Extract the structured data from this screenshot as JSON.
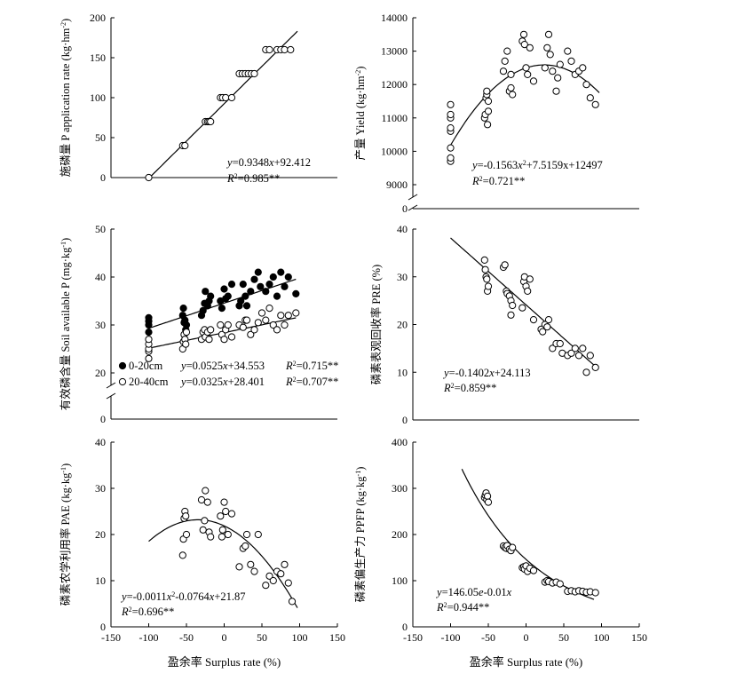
{
  "chart_data": [
    {
      "id": "p1",
      "type": "scatter",
      "ylabel_parts": [
        {
          "t": "施磷量  P application rate (kg·hm"
        },
        {
          "t": "-2",
          "sup": true
        },
        {
          "t": ")"
        }
      ],
      "xlabel": "",
      "ylim": [
        0,
        200
      ],
      "yticks": [
        0,
        50,
        100,
        150,
        200
      ],
      "xlim": [
        -150,
        150
      ],
      "xticks": [],
      "xtick_labels": false,
      "axis_break": false,
      "series": [
        {
          "style": "open",
          "x": [
            -100,
            -55,
            -52,
            -25,
            -22,
            -20,
            -18,
            -5,
            -2,
            2,
            10,
            20,
            24,
            28,
            32,
            36,
            40,
            55,
            60,
            70,
            75,
            80,
            88
          ],
          "y": [
            0,
            40,
            40,
            70,
            70,
            70,
            70,
            100,
            100,
            100,
            100,
            130,
            130,
            130,
            130,
            130,
            130,
            160,
            160,
            160,
            160,
            160,
            160
          ]
        }
      ],
      "fits": [
        {
          "kind": "poly",
          "coef": [
            92.412,
            0.9348
          ],
          "x_range": [
            -100,
            97
          ]
        }
      ],
      "equations": [
        {
          "lines": [
            [
              {
                "t": "y",
                "it": true
              },
              {
                "t": "=0.9348"
              },
              {
                "t": "x",
                "it": true
              },
              {
                "t": "+92.412"
              }
            ],
            [
              {
                "t": "R",
                "it": true
              },
              {
                "t": "2",
                "sup": true
              },
              {
                "t": "=0.985**"
              }
            ]
          ]
        }
      ]
    },
    {
      "id": "p2",
      "type": "scatter",
      "ylabel_parts": [
        {
          "t": "产量  Yield (kg·hm"
        },
        {
          "t": "-2",
          "sup": true
        },
        {
          "t": ")"
        }
      ],
      "xlabel": "",
      "ylim": [
        9000,
        14000
      ],
      "yticks": [
        9000,
        10000,
        11000,
        12000,
        13000,
        14000
      ],
      "xlim": [
        -150,
        150
      ],
      "xticks": [],
      "xtick_labels": false,
      "axis_break": true,
      "zero_label": "0",
      "series": [
        {
          "style": "open",
          "x": [
            -100,
            -100,
            -100,
            -100,
            -100,
            -100,
            -100,
            -100,
            -55,
            -54,
            -53,
            -52,
            -52,
            -51,
            -50,
            -50,
            -30,
            -28,
            -25,
            -22,
            -20,
            -20,
            -18,
            -5,
            -3,
            -2,
            0,
            2,
            5,
            10,
            25,
            28,
            30,
            32,
            35,
            40,
            42,
            45,
            55,
            60,
            65,
            70,
            75,
            80,
            85,
            92
          ],
          "y": [
            9700,
            9800,
            10100,
            10600,
            10700,
            11000,
            11400,
            11100,
            11000,
            11100,
            11600,
            11700,
            11800,
            10800,
            11200,
            11500,
            12400,
            12700,
            13000,
            11800,
            12300,
            11900,
            11700,
            13300,
            13500,
            13200,
            12500,
            12300,
            13100,
            12100,
            12500,
            13100,
            13500,
            12900,
            12400,
            11800,
            12200,
            12600,
            13000,
            12700,
            12300,
            12400,
            12500,
            12000,
            11600,
            11400
          ]
        }
      ],
      "fits": [
        {
          "kind": "poly",
          "coef": [
            12497,
            7.5159,
            -0.1563
          ],
          "x_range": [
            -100,
            97
          ]
        }
      ],
      "equations": [
        {
          "lines": [
            [
              {
                "t": "y",
                "it": true
              },
              {
                "t": "=-0.1563"
              },
              {
                "t": "x",
                "it": true
              },
              {
                "t": "2",
                "sup": true
              },
              {
                "t": "+7.5159x+12497"
              }
            ],
            [
              {
                "t": "R",
                "it": true
              },
              {
                "t": "2",
                "sup": true
              },
              {
                "t": "=0.721**"
              }
            ]
          ]
        }
      ]
    },
    {
      "id": "p3",
      "type": "scatter",
      "ylabel_parts": [
        {
          "t": "有效磷含量  Soil available P (mg·kg"
        },
        {
          "t": "-1",
          "sup": true
        },
        {
          "t": ")"
        }
      ],
      "xlabel": "",
      "ylim": [
        20,
        50
      ],
      "yticks": [
        20,
        30,
        40,
        50
      ],
      "xlim": [
        -150,
        150
      ],
      "xticks": [],
      "xtick_labels": false,
      "axis_break": true,
      "zero_label": "0",
      "series": [
        {
          "style": "filled",
          "name": "0-20cm",
          "x": [
            -100,
            -100,
            -100,
            -100,
            -55,
            -54,
            -53,
            -52,
            -51,
            -50,
            -30,
            -28,
            -26,
            -25,
            -22,
            -20,
            -18,
            -5,
            -3,
            0,
            2,
            5,
            10,
            20,
            22,
            25,
            28,
            30,
            35,
            40,
            45,
            48,
            55,
            60,
            65,
            70,
            75,
            80,
            85,
            95
          ],
          "y": [
            28.5,
            30,
            30.8,
            31.5,
            32,
            33.5,
            30.5,
            31,
            29,
            30,
            32,
            33,
            34.5,
            37,
            34,
            35,
            36,
            35,
            33.5,
            37.5,
            35.5,
            36,
            38.5,
            34,
            35,
            38.5,
            36,
            34,
            37,
            39.5,
            41,
            38,
            37,
            38.5,
            40,
            36,
            41,
            38,
            40,
            36.5
          ]
        },
        {
          "style": "open",
          "name": "20-40cm",
          "x": [
            -100,
            -100,
            -100,
            -100,
            -100,
            -55,
            -54,
            -53,
            -52,
            -51,
            -50,
            -30,
            -28,
            -26,
            -25,
            -22,
            -20,
            -18,
            -5,
            -3,
            0,
            2,
            5,
            10,
            20,
            25,
            28,
            30,
            35,
            40,
            45,
            50,
            55,
            60,
            65,
            70,
            75,
            80,
            85,
            95
          ],
          "y": [
            23,
            24.5,
            25,
            26,
            27,
            25,
            26.5,
            28,
            27,
            26,
            28.5,
            27,
            28.5,
            29,
            27.5,
            28.5,
            27,
            29,
            30,
            28,
            27,
            29,
            30,
            27.5,
            30,
            29.5,
            31,
            31,
            28,
            29,
            30.5,
            32.5,
            31,
            33.5,
            30,
            29,
            32,
            30,
            32,
            32.5
          ]
        }
      ],
      "fits": [
        {
          "kind": "poly",
          "coef": [
            34.553,
            0.0525
          ],
          "x_range": [
            -100,
            95
          ]
        },
        {
          "kind": "poly",
          "coef": [
            28.401,
            0.0325
          ],
          "x_range": [
            -100,
            95
          ]
        }
      ],
      "legend": [
        {
          "marker": "filled",
          "label": "0-20cm",
          "eq": [
            {
              "t": "y",
              "it": true
            },
            {
              "t": "=0.0525"
            },
            {
              "t": "x",
              "it": true
            },
            {
              "t": "+34.553"
            }
          ],
          "r2": [
            {
              "t": "R",
              "it": true
            },
            {
              "t": "2",
              "sup": true
            },
            {
              "t": "=0.715**"
            }
          ]
        },
        {
          "marker": "open",
          "label": "20-40cm",
          "eq": [
            {
              "t": "y",
              "it": true
            },
            {
              "t": "=0.0325"
            },
            {
              "t": "x",
              "it": true
            },
            {
              "t": "+28.401"
            }
          ],
          "r2": [
            {
              "t": "R",
              "it": true
            },
            {
              "t": "2",
              "sup": true
            },
            {
              "t": "=0.707**"
            }
          ]
        }
      ]
    },
    {
      "id": "p4",
      "type": "scatter",
      "ylabel_parts": [
        {
          "t": "磷素表观回收率 PRE (%)"
        }
      ],
      "xlabel": "",
      "ylim": [
        0,
        40
      ],
      "yticks": [
        0,
        10,
        20,
        30,
        40
      ],
      "xlim": [
        -150,
        150
      ],
      "xticks": [],
      "xtick_labels": false,
      "axis_break": false,
      "series": [
        {
          "style": "open",
          "x": [
            -55,
            -54,
            -53,
            -52,
            -51,
            -50,
            -30,
            -28,
            -26,
            -25,
            -22,
            -20,
            -20,
            -18,
            -5,
            -3,
            -2,
            0,
            2,
            5,
            10,
            20,
            22,
            25,
            28,
            30,
            35,
            40,
            45,
            48,
            55,
            60,
            65,
            70,
            75,
            80,
            85,
            92
          ],
          "y": [
            33.5,
            31.5,
            30,
            29.5,
            27,
            28,
            32,
            32.5,
            27,
            26.5,
            26,
            25,
            22,
            24,
            23.5,
            29,
            30,
            28,
            27,
            29.5,
            21,
            19,
            18.5,
            20,
            19.5,
            21,
            15,
            16,
            16,
            14,
            13.5,
            14,
            15,
            13.5,
            15,
            10,
            13.5,
            11
          ]
        }
      ],
      "fits": [
        {
          "kind": "poly",
          "coef": [
            24.113,
            -0.1402
          ],
          "x_range": [
            -100,
            92
          ]
        }
      ],
      "equations": [
        {
          "lines": [
            [
              {
                "t": "y",
                "it": true
              },
              {
                "t": "=-0.1402"
              },
              {
                "t": "x",
                "it": true
              },
              {
                "t": "+24.113"
              }
            ],
            [
              {
                "t": "R",
                "it": true
              },
              {
                "t": "2",
                "sup": true
              },
              {
                "t": "=0.859**"
              }
            ]
          ]
        }
      ]
    },
    {
      "id": "p5",
      "type": "scatter",
      "ylabel_parts": [
        {
          "t": "磷素农学利用率 PAE (kg·kg"
        },
        {
          "t": "-1",
          "sup": true
        },
        {
          "t": ")"
        }
      ],
      "xlabel": "盈余率 Surplus rate (%)",
      "ylim": [
        0,
        40
      ],
      "yticks": [
        0,
        10,
        20,
        30,
        40
      ],
      "xlim": [
        -150,
        150
      ],
      "xticks": [
        -150,
        -100,
        -50,
        0,
        50,
        100,
        150
      ],
      "xtick_labels": true,
      "axis_break": false,
      "series": [
        {
          "style": "open",
          "x": [
            -55,
            -54,
            -53,
            -52,
            -51,
            -50,
            -30,
            -28,
            -26,
            -25,
            -22,
            -20,
            -18,
            -5,
            -3,
            -2,
            0,
            2,
            5,
            10,
            20,
            25,
            28,
            30,
            35,
            40,
            45,
            55,
            60,
            65,
            70,
            75,
            80,
            85,
            90
          ],
          "y": [
            15.5,
            19,
            23.5,
            25,
            24,
            20,
            27.5,
            21,
            23,
            29.5,
            27,
            20.5,
            19.5,
            24,
            19.5,
            21,
            27,
            25,
            20,
            24.5,
            13,
            17,
            17.5,
            20,
            13.5,
            12,
            20,
            9,
            11,
            10,
            12,
            11.5,
            13.5,
            9.5,
            5.5
          ]
        }
      ],
      "fits": [
        {
          "kind": "poly",
          "coef": [
            21.87,
            -0.0764,
            -0.0011
          ],
          "x_range": [
            -100,
            97
          ]
        }
      ],
      "equations": [
        {
          "lines": [
            [
              {
                "t": "y",
                "it": true
              },
              {
                "t": "=-0.0011"
              },
              {
                "t": "x",
                "it": true
              },
              {
                "t": "2",
                "sup": true
              },
              {
                "t": "-0.0764"
              },
              {
                "t": "x",
                "it": true
              },
              {
                "t": "+21.87"
              }
            ],
            [
              {
                "t": "R",
                "it": true
              },
              {
                "t": "2",
                "sup": true
              },
              {
                "t": "=0.696**"
              }
            ]
          ]
        }
      ]
    },
    {
      "id": "p6",
      "type": "scatter",
      "ylabel_parts": [
        {
          "t": "磷素偏生产力 PPFP (kg·kg"
        },
        {
          "t": "-1",
          "sup": true
        },
        {
          "t": ")"
        }
      ],
      "xlabel": "盈余率 Surplus rate (%)",
      "ylim": [
        0,
        400
      ],
      "yticks": [
        0,
        100,
        200,
        300,
        400
      ],
      "xlim": [
        -150,
        150
      ],
      "xticks": [
        -150,
        -100,
        -50,
        0,
        50,
        100,
        150
      ],
      "xtick_labels": true,
      "axis_break": false,
      "series": [
        {
          "style": "open",
          "x": [
            -55,
            -54,
            -53,
            -52,
            -51,
            -50,
            -30,
            -28,
            -26,
            -25,
            -22,
            -20,
            -18,
            -5,
            -3,
            -2,
            0,
            2,
            5,
            10,
            25,
            28,
            30,
            35,
            40,
            45,
            55,
            60,
            65,
            70,
            75,
            80,
            85,
            92
          ],
          "y": [
            280,
            285,
            290,
            275,
            283,
            270,
            175,
            172,
            170,
            176,
            168,
            165,
            172,
            128,
            130,
            125,
            132,
            120,
            127,
            122,
            97,
            100,
            98,
            95,
            97,
            93,
            77,
            78,
            76,
            78,
            77,
            75,
            76,
            74
          ]
        }
      ],
      "fits": [
        {
          "kind": "exp",
          "a": 146.05,
          "b": -0.01,
          "x_range": [
            -85,
            90
          ]
        }
      ],
      "equations": [
        {
          "lines": [
            [
              {
                "t": "y",
                "it": true
              },
              {
                "t": "=146.05"
              },
              {
                "t": "e",
                "it": true
              },
              {
                "t": "-0.01"
              },
              {
                "t": "x",
                "it": true
              }
            ],
            [
              {
                "t": "R",
                "it": true
              },
              {
                "t": "2",
                "sup": true
              },
              {
                "t": "=0.944**"
              }
            ]
          ]
        }
      ]
    }
  ]
}
